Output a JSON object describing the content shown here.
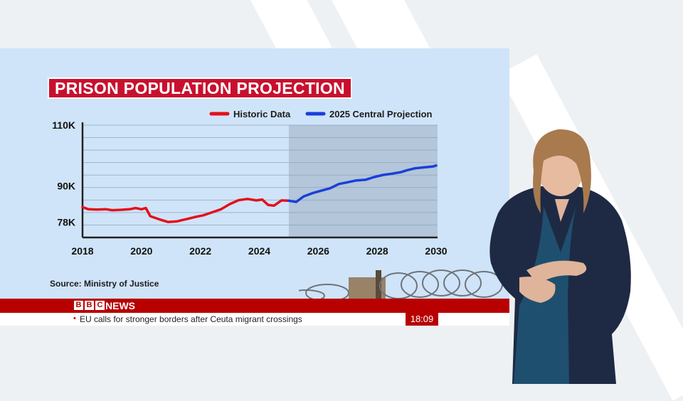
{
  "chart_data": {
    "type": "line",
    "title": "PRISON POPULATION PROJECTION",
    "xlim": [
      2018,
      2030
    ],
    "ylim": [
      73000,
      110000
    ],
    "yticks": [
      {
        "value": 78000,
        "label": "78K"
      },
      {
        "value": 90000,
        "label": "90K"
      },
      {
        "value": 110000,
        "label": "110K"
      }
    ],
    "xticks": [
      {
        "value": 2018,
        "label": "2018"
      },
      {
        "value": 2020,
        "label": "2020"
      },
      {
        "value": 2022,
        "label": "2022"
      },
      {
        "value": 2024,
        "label": "2024"
      },
      {
        "value": 2026,
        "label": "2026"
      },
      {
        "value": 2028,
        "label": "2028"
      },
      {
        "value": 2030,
        "label": "2030"
      }
    ],
    "projection_start": 2025,
    "grid": true,
    "legend_position": "top-right",
    "series": [
      {
        "name": "Historic Data",
        "color": "#e3101b",
        "points": [
          [
            2018.0,
            83000
          ],
          [
            2018.2,
            82300
          ],
          [
            2018.5,
            82200
          ],
          [
            2018.8,
            82300
          ],
          [
            2019.0,
            82000
          ],
          [
            2019.3,
            82100
          ],
          [
            2019.6,
            82300
          ],
          [
            2019.8,
            82700
          ],
          [
            2020.0,
            82300
          ],
          [
            2020.15,
            82700
          ],
          [
            2020.3,
            80000
          ],
          [
            2020.6,
            79000
          ],
          [
            2020.9,
            78100
          ],
          [
            2021.2,
            78300
          ],
          [
            2021.5,
            79000
          ],
          [
            2021.8,
            79700
          ],
          [
            2022.1,
            80300
          ],
          [
            2022.4,
            81300
          ],
          [
            2022.7,
            82300
          ],
          [
            2023.0,
            84000
          ],
          [
            2023.3,
            85300
          ],
          [
            2023.6,
            85700
          ],
          [
            2023.9,
            85200
          ],
          [
            2024.1,
            85500
          ],
          [
            2024.3,
            83700
          ],
          [
            2024.5,
            83500
          ],
          [
            2024.75,
            85200
          ],
          [
            2025.0,
            85100
          ]
        ]
      },
      {
        "name": "2025 Central Projection",
        "color": "#1a3fd6",
        "points": [
          [
            2025.0,
            85100
          ],
          [
            2025.25,
            84700
          ],
          [
            2025.5,
            86500
          ],
          [
            2025.8,
            87600
          ],
          [
            2026.1,
            88400
          ],
          [
            2026.4,
            89200
          ],
          [
            2026.7,
            90600
          ],
          [
            2027.0,
            91200
          ],
          [
            2027.3,
            91800
          ],
          [
            2027.6,
            92000
          ],
          [
            2027.9,
            92900
          ],
          [
            2028.2,
            93600
          ],
          [
            2028.5,
            94000
          ],
          [
            2028.8,
            94500
          ],
          [
            2029.0,
            95100
          ],
          [
            2029.3,
            95800
          ],
          [
            2029.6,
            96100
          ],
          [
            2029.9,
            96400
          ],
          [
            2030.0,
            96700
          ]
        ]
      }
    ]
  },
  "source": "Source: Ministry of Justice",
  "news": {
    "logo_letters": [
      "B",
      "B",
      "C"
    ],
    "label": "NEWS",
    "ticker": "EU calls for stronger borders after Ceuta migrant crossings",
    "bullet": "•",
    "time": "18:09"
  },
  "colors": {
    "panel": "#cfe4f8",
    "bbc_red": "#b80000",
    "title_red": "#c8102e"
  }
}
